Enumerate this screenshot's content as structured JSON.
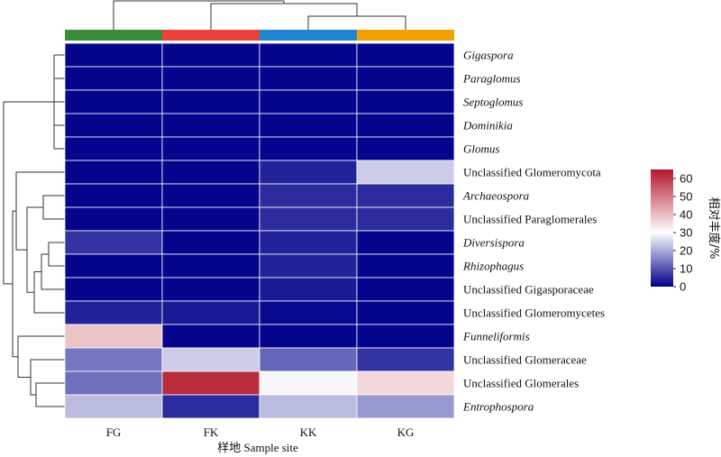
{
  "chart_data": {
    "type": "heatmap",
    "columns": [
      "FG",
      "FK",
      "KK",
      "KG"
    ],
    "column_colors": [
      "#3a8c3c",
      "#e8423a",
      "#1f85d0",
      "#f5a000"
    ],
    "rows": [
      {
        "label": "Gigaspora",
        "italic": true
      },
      {
        "label": "Paraglomus",
        "italic": true
      },
      {
        "label": "Septoglomus",
        "italic": true
      },
      {
        "label": "Dominikia",
        "italic": true
      },
      {
        "label": "Glomus",
        "italic": true
      },
      {
        "label": "Unclassified Glomeromycota",
        "italic": false
      },
      {
        "label": "Archaeospora",
        "italic": true
      },
      {
        "label": "Unclassified Paraglomerales",
        "italic": false
      },
      {
        "label": "Diversispora",
        "italic": true
      },
      {
        "label": "Rhizophagus",
        "italic": true
      },
      {
        "label": "Unclassified Gigasporaceae",
        "italic": false
      },
      {
        "label": "Unclassified Glomeromycetes",
        "italic": false
      },
      {
        "label": "Funneliformis",
        "italic": true
      },
      {
        "label": "Unclassified Glomeraceae",
        "italic": false
      },
      {
        "label": "Unclassified Glomerales",
        "italic": false
      },
      {
        "label": "Entrophospora",
        "italic": true
      }
    ],
    "values": [
      [
        0.5,
        0.5,
        0.5,
        0.5
      ],
      [
        0.5,
        0.5,
        0.5,
        0.5
      ],
      [
        0.5,
        0.5,
        0.5,
        0.5
      ],
      [
        0.5,
        0.5,
        0.5,
        0.5
      ],
      [
        0.5,
        0.5,
        0.5,
        0.5
      ],
      [
        0.5,
        0.5,
        4,
        24
      ],
      [
        0.5,
        0.5,
        5,
        5
      ],
      [
        0.5,
        0.5,
        5,
        5
      ],
      [
        6,
        0.5,
        4,
        0.5
      ],
      [
        0.5,
        0.5,
        4,
        0.5
      ],
      [
        0.5,
        0.5,
        3,
        0.5
      ],
      [
        4,
        3,
        1,
        0.5
      ],
      [
        39,
        0.5,
        0.5,
        0.5
      ],
      [
        14,
        24,
        12,
        6
      ],
      [
        13,
        62,
        29,
        36
      ],
      [
        22,
        5,
        22,
        18
      ]
    ],
    "xlabel": "样地  Sample site",
    "colorbar": {
      "title": "相对丰度/%",
      "min": 0,
      "max": 65,
      "ticks": [
        0,
        10,
        20,
        30,
        40,
        50,
        60
      ],
      "colors": [
        "#00008b",
        "#ffffff",
        "#b2182b"
      ]
    }
  }
}
